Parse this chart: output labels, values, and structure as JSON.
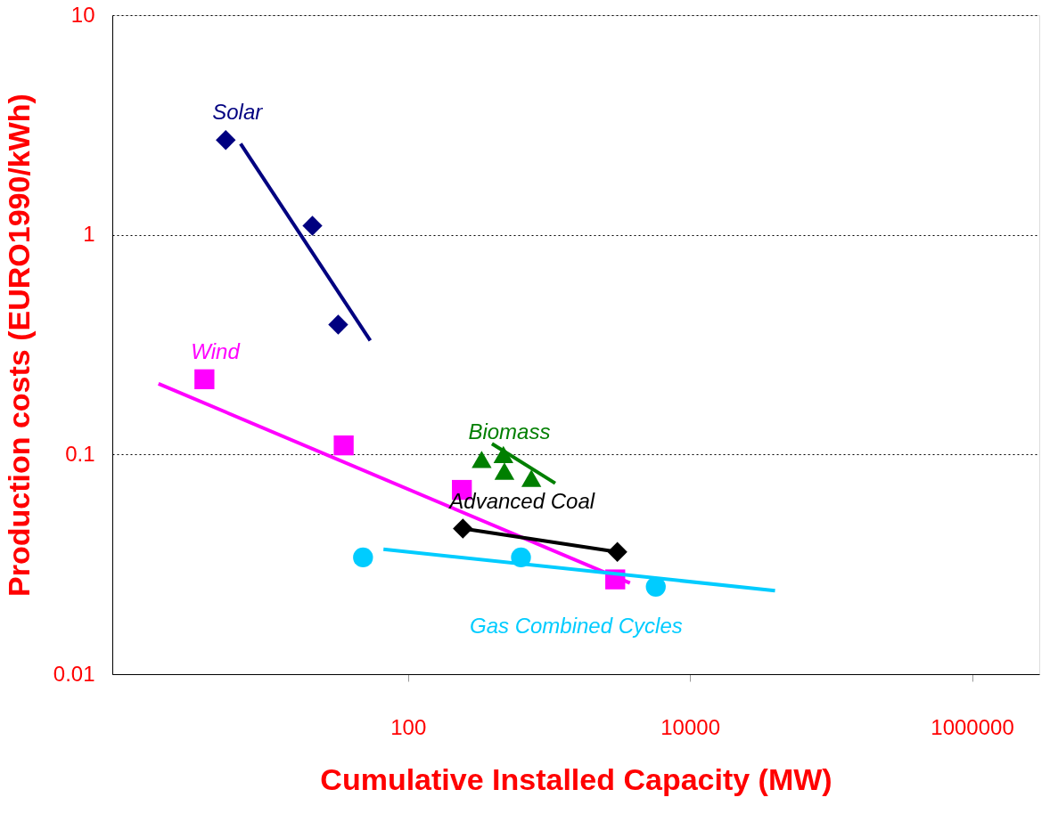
{
  "chart_data": {
    "type": "scatter",
    "xlabel": "Cumulative Installed Capacity (MW)",
    "ylabel": "Production costs (EURO1990/kWh)",
    "log": "xy",
    "xlim": [
      0.8,
      3000000
    ],
    "ylim": [
      0.01,
      10
    ],
    "xticks": [
      100,
      {
        "value": 10000,
        "label": "10000"
      },
      {
        "value": 1000000,
        "label": "1000000"
      }
    ],
    "yticks": [
      0.01,
      0.1,
      1,
      10
    ],
    "grid": "y",
    "line_style": "solid",
    "legend": false,
    "series": [
      {
        "name": "Solar",
        "marker": "diamond",
        "color": "#000080",
        "x": [
          5.1,
          21,
          32
        ],
        "values": [
          2.7,
          1.1,
          0.39
        ]
      },
      {
        "type": "line",
        "marker": "none",
        "color": "#000080",
        "x": [
          6.5,
          54
        ],
        "values": [
          2.6,
          0.33
        ]
      },
      {
        "name": "Wind",
        "marker": "square",
        "color": "#ff00ff",
        "x": [
          3.6,
          35,
          241,
          2950
        ],
        "values": [
          0.22,
          0.11,
          0.069,
          0.027
        ]
      },
      {
        "type": "line",
        "marker": "none",
        "color": "#ff00ff",
        "x": [
          1.7,
          3750
        ],
        "values": [
          0.21,
          0.026
        ]
      },
      {
        "name": "Biomass",
        "marker": "triangle",
        "color": "#007f00",
        "x": [
          333,
          475,
          483,
          750
        ],
        "values": [
          0.095,
          0.1,
          0.084,
          0.078
        ]
      },
      {
        "type": "line",
        "marker": "none",
        "color": "#007f00",
        "x": [
          394,
          1107
        ],
        "values": [
          0.112,
          0.074
        ]
      },
      {
        "name": "Advanced Coal",
        "marker": "diamond",
        "color": "#000000",
        "x": [
          245,
          3055
        ],
        "values": [
          0.046,
          0.036
        ]
      },
      {
        "type": "line",
        "marker": "none",
        "color": "#000000",
        "x": [
          245,
          3055
        ],
        "values": [
          0.046,
          0.036
        ]
      },
      {
        "name": "Gas Combined Cycles",
        "marker": "circle",
        "color": "#00ccff",
        "x": [
          48,
          633,
          5720
        ],
        "values": [
          0.034,
          0.034,
          0.025
        ]
      },
      {
        "type": "line",
        "marker": "none",
        "color": "#00ccff",
        "x": [
          67,
          40100
        ],
        "values": [
          0.037,
          0.024
        ]
      }
    ]
  }
}
